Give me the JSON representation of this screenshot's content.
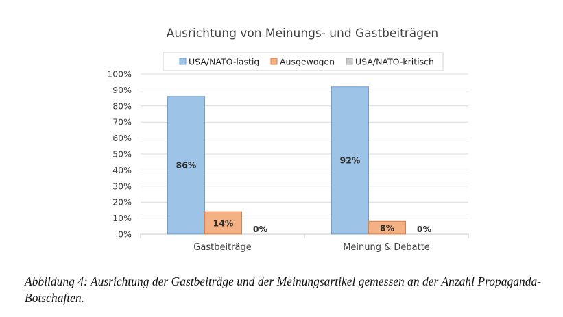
{
  "chart_data": {
    "type": "bar",
    "title": "Ausrichtung von Meinungs- und Gastbeiträgen",
    "categories": [
      "Gastbeiträge",
      "Meinung & Debatte"
    ],
    "series": [
      {
        "name": "USA/NATO-lastig",
        "values": [
          86,
          92
        ],
        "labels": [
          "86%",
          "92%"
        ],
        "color": "#9dc3e6",
        "stroke": "#6f9fd1"
      },
      {
        "name": "Ausgewogen",
        "values": [
          14,
          8
        ],
        "labels": [
          "14%",
          "8%"
        ],
        "color": "#f4b183",
        "stroke": "#e07c46"
      },
      {
        "name": "USA/NATO-kritisch",
        "values": [
          0,
          0
        ],
        "labels": [
          "0%",
          "0%"
        ],
        "color": "#c9c9c9",
        "stroke": "#a5a5a5"
      }
    ],
    "ylim": [
      0,
      100
    ],
    "yticks": [
      0,
      10,
      20,
      30,
      40,
      50,
      60,
      70,
      80,
      90,
      100
    ],
    "ytick_labels": [
      "0%",
      "10%",
      "20%",
      "30%",
      "40%",
      "50%",
      "60%",
      "70%",
      "80%",
      "90%",
      "100%"
    ],
    "grid": true,
    "legend_position": "top"
  },
  "caption": "Abbildung 4: Ausrichtung der Gastbeiträge und der Meinungsartikel gemessen an der Anzahl Propaganda-Botschaften."
}
